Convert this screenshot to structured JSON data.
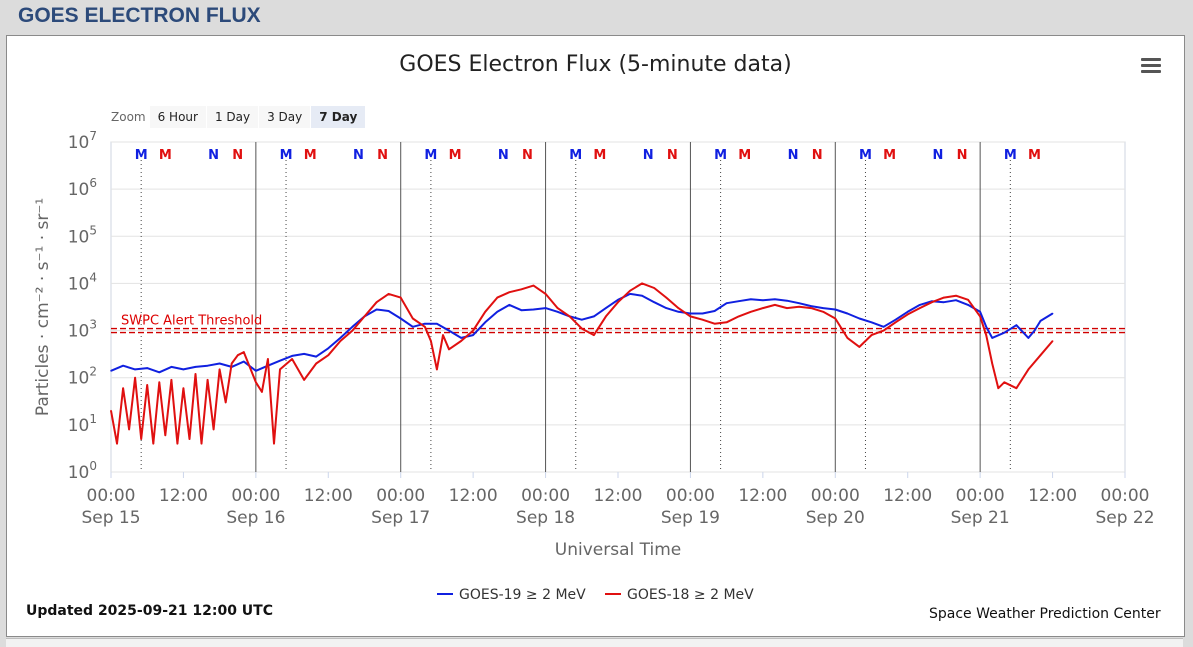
{
  "page": {
    "header_title": "GOES ELECTRON FLUX"
  },
  "chart_ui": {
    "zoom_label": "Zoom",
    "zoom_buttons": [
      "6 Hour",
      "1 Day",
      "3 Day",
      "7 Day"
    ],
    "zoom_selected": "7 Day",
    "menu_icon": "hamburger-menu-icon"
  },
  "footer": {
    "updated": "Updated 2025-09-21 12:00 UTC",
    "credit": "Space Weather Prediction Center"
  },
  "colors": {
    "goes19": "#1020e0",
    "goes18": "#e01010",
    "threshold": "#d00000",
    "header_text": "#2c4a7a"
  },
  "chart_data": {
    "type": "line",
    "title": "GOES Electron Flux (5-minute data)",
    "xlabel": "Universal Time",
    "ylabel": "Particles · cm⁻² · s⁻¹ · sr⁻¹",
    "y_scale": "log",
    "ylim": [
      1,
      10000000
    ],
    "y_ticks": [
      {
        "base": "10",
        "exp": "0",
        "value": 1
      },
      {
        "base": "10",
        "exp": "1",
        "value": 10
      },
      {
        "base": "10",
        "exp": "2",
        "value": 100
      },
      {
        "base": "10",
        "exp": "3",
        "value": 1000
      },
      {
        "base": "10",
        "exp": "4",
        "value": 10000
      },
      {
        "base": "10",
        "exp": "5",
        "value": 100000
      },
      {
        "base": "10",
        "exp": "6",
        "value": 1000000
      },
      {
        "base": "10",
        "exp": "7",
        "value": 10000000
      }
    ],
    "x_range": [
      "2025-09-15 00:00",
      "2025-09-22 00:00"
    ],
    "x_ticks": [
      {
        "time": "00:00",
        "date": "Sep 15",
        "x": "2025-09-15 00:00"
      },
      {
        "time": "12:00",
        "date": "",
        "x": "2025-09-15 12:00"
      },
      {
        "time": "00:00",
        "date": "Sep 16",
        "x": "2025-09-16 00:00"
      },
      {
        "time": "12:00",
        "date": "",
        "x": "2025-09-16 12:00"
      },
      {
        "time": "00:00",
        "date": "Sep 17",
        "x": "2025-09-17 00:00"
      },
      {
        "time": "12:00",
        "date": "",
        "x": "2025-09-17 12:00"
      },
      {
        "time": "00:00",
        "date": "Sep 18",
        "x": "2025-09-18 00:00"
      },
      {
        "time": "12:00",
        "date": "",
        "x": "2025-09-18 12:00"
      },
      {
        "time": "00:00",
        "date": "Sep 19",
        "x": "2025-09-19 00:00"
      },
      {
        "time": "12:00",
        "date": "",
        "x": "2025-09-19 12:00"
      },
      {
        "time": "00:00",
        "date": "Sep 20",
        "x": "2025-09-20 00:00"
      },
      {
        "time": "12:00",
        "date": "",
        "x": "2025-09-20 12:00"
      },
      {
        "time": "00:00",
        "date": "Sep 21",
        "x": "2025-09-21 00:00"
      },
      {
        "time": "12:00",
        "date": "",
        "x": "2025-09-21 12:00"
      },
      {
        "time": "00:00",
        "date": "Sep 22",
        "x": "2025-09-22 00:00"
      }
    ],
    "grid": true,
    "legend_position": "bottom-center",
    "threshold": {
      "label": "SWPC Alert Threshold",
      "value": 1000
    },
    "markers": [
      {
        "label": "M",
        "series": "goes19",
        "x": "2025-09-15 05:00"
      },
      {
        "label": "M",
        "series": "goes18",
        "x": "2025-09-15 09:00"
      },
      {
        "label": "N",
        "series": "goes19",
        "x": "2025-09-15 17:00"
      },
      {
        "label": "N",
        "series": "goes18",
        "x": "2025-09-15 21:00"
      },
      {
        "label": "M",
        "series": "goes19",
        "x": "2025-09-16 05:00"
      },
      {
        "label": "M",
        "series": "goes18",
        "x": "2025-09-16 09:00"
      },
      {
        "label": "N",
        "series": "goes19",
        "x": "2025-09-16 17:00"
      },
      {
        "label": "N",
        "series": "goes18",
        "x": "2025-09-16 21:00"
      },
      {
        "label": "M",
        "series": "goes19",
        "x": "2025-09-17 05:00"
      },
      {
        "label": "M",
        "series": "goes18",
        "x": "2025-09-17 09:00"
      },
      {
        "label": "N",
        "series": "goes19",
        "x": "2025-09-17 17:00"
      },
      {
        "label": "N",
        "series": "goes18",
        "x": "2025-09-17 21:00"
      },
      {
        "label": "M",
        "series": "goes19",
        "x": "2025-09-18 05:00"
      },
      {
        "label": "M",
        "series": "goes18",
        "x": "2025-09-18 09:00"
      },
      {
        "label": "N",
        "series": "goes19",
        "x": "2025-09-18 17:00"
      },
      {
        "label": "N",
        "series": "goes18",
        "x": "2025-09-18 21:00"
      },
      {
        "label": "M",
        "series": "goes19",
        "x": "2025-09-19 05:00"
      },
      {
        "label": "M",
        "series": "goes18",
        "x": "2025-09-19 09:00"
      },
      {
        "label": "N",
        "series": "goes19",
        "x": "2025-09-19 17:00"
      },
      {
        "label": "N",
        "series": "goes18",
        "x": "2025-09-19 21:00"
      },
      {
        "label": "M",
        "series": "goes19",
        "x": "2025-09-20 05:00"
      },
      {
        "label": "M",
        "series": "goes18",
        "x": "2025-09-20 09:00"
      },
      {
        "label": "N",
        "series": "goes19",
        "x": "2025-09-20 17:00"
      },
      {
        "label": "N",
        "series": "goes18",
        "x": "2025-09-20 21:00"
      },
      {
        "label": "M",
        "series": "goes19",
        "x": "2025-09-21 05:00"
      },
      {
        "label": "M",
        "series": "goes18",
        "x": "2025-09-21 09:00"
      }
    ],
    "series": [
      {
        "id": "goes19",
        "name": "GOES-19 ≥ 2 MeV",
        "color": "#1020e0",
        "points": [
          [
            "2025-09-15 00:00",
            140
          ],
          [
            "2025-09-15 02:00",
            180
          ],
          [
            "2025-09-15 04:00",
            150
          ],
          [
            "2025-09-15 06:00",
            160
          ],
          [
            "2025-09-15 08:00",
            130
          ],
          [
            "2025-09-15 10:00",
            170
          ],
          [
            "2025-09-15 12:00",
            150
          ],
          [
            "2025-09-15 14:00",
            170
          ],
          [
            "2025-09-15 16:00",
            180
          ],
          [
            "2025-09-15 18:00",
            200
          ],
          [
            "2025-09-15 20:00",
            170
          ],
          [
            "2025-09-15 22:00",
            220
          ],
          [
            "2025-09-16 00:00",
            140
          ],
          [
            "2025-09-16 02:00",
            180
          ],
          [
            "2025-09-16 04:00",
            230
          ],
          [
            "2025-09-16 06:00",
            290
          ],
          [
            "2025-09-16 08:00",
            320
          ],
          [
            "2025-09-16 10:00",
            280
          ],
          [
            "2025-09-16 12:00",
            420
          ],
          [
            "2025-09-16 14:00",
            700
          ],
          [
            "2025-09-16 16:00",
            1200
          ],
          [
            "2025-09-16 18:00",
            2000
          ],
          [
            "2025-09-16 20:00",
            2800
          ],
          [
            "2025-09-16 22:00",
            2600
          ],
          [
            "2025-09-17 00:00",
            1800
          ],
          [
            "2025-09-17 02:00",
            1200
          ],
          [
            "2025-09-17 04:00",
            1400
          ],
          [
            "2025-09-17 06:00",
            1400
          ],
          [
            "2025-09-17 08:00",
            1000
          ],
          [
            "2025-09-17 10:00",
            700
          ],
          [
            "2025-09-17 12:00",
            800
          ],
          [
            "2025-09-17 14:00",
            1500
          ],
          [
            "2025-09-17 16:00",
            2500
          ],
          [
            "2025-09-17 18:00",
            3500
          ],
          [
            "2025-09-17 20:00",
            2700
          ],
          [
            "2025-09-17 22:00",
            2800
          ],
          [
            "2025-09-18 00:00",
            3000
          ],
          [
            "2025-09-18 02:00",
            2500
          ],
          [
            "2025-09-18 04:00",
            2000
          ],
          [
            "2025-09-18 06:00",
            1700
          ],
          [
            "2025-09-18 08:00",
            2000
          ],
          [
            "2025-09-18 10:00",
            3000
          ],
          [
            "2025-09-18 12:00",
            4500
          ],
          [
            "2025-09-18 14:00",
            6000
          ],
          [
            "2025-09-18 16:00",
            5500
          ],
          [
            "2025-09-18 18:00",
            4000
          ],
          [
            "2025-09-18 20:00",
            3000
          ],
          [
            "2025-09-18 22:00",
            2500
          ],
          [
            "2025-09-19 00:00",
            2300
          ],
          [
            "2025-09-19 02:00",
            2300
          ],
          [
            "2025-09-19 04:00",
            2600
          ],
          [
            "2025-09-19 06:00",
            3800
          ],
          [
            "2025-09-19 08:00",
            4200
          ],
          [
            "2025-09-19 10:00",
            4600
          ],
          [
            "2025-09-19 12:00",
            4400
          ],
          [
            "2025-09-19 14:00",
            4600
          ],
          [
            "2025-09-19 16:00",
            4300
          ],
          [
            "2025-09-19 18:00",
            3800
          ],
          [
            "2025-09-19 20:00",
            3300
          ],
          [
            "2025-09-19 22:00",
            3000
          ],
          [
            "2025-09-20 00:00",
            2800
          ],
          [
            "2025-09-20 02:00",
            2300
          ],
          [
            "2025-09-20 04:00",
            1800
          ],
          [
            "2025-09-20 06:00",
            1500
          ],
          [
            "2025-09-20 08:00",
            1200
          ],
          [
            "2025-09-20 10:00",
            1700
          ],
          [
            "2025-09-20 12:00",
            2500
          ],
          [
            "2025-09-20 14:00",
            3500
          ],
          [
            "2025-09-20 16:00",
            4200
          ],
          [
            "2025-09-20 18:00",
            4000
          ],
          [
            "2025-09-20 20:00",
            4400
          ],
          [
            "2025-09-20 22:00",
            3500
          ],
          [
            "2025-09-21 00:00",
            2500
          ],
          [
            "2025-09-21 01:00",
            1200
          ],
          [
            "2025-09-21 02:00",
            700
          ],
          [
            "2025-09-21 04:00",
            900
          ],
          [
            "2025-09-21 06:00",
            1300
          ],
          [
            "2025-09-21 08:00",
            700
          ],
          [
            "2025-09-21 09:00",
            1000
          ],
          [
            "2025-09-21 10:00",
            1600
          ],
          [
            "2025-09-21 12:00",
            2300
          ]
        ]
      },
      {
        "id": "goes18",
        "name": "GOES-18 ≥ 2 MeV",
        "color": "#e01010",
        "points": [
          [
            "2025-09-15 00:00",
            20
          ],
          [
            "2025-09-15 01:00",
            4
          ],
          [
            "2025-09-15 02:00",
            60
          ],
          [
            "2025-09-15 03:00",
            8
          ],
          [
            "2025-09-15 04:00",
            100
          ],
          [
            "2025-09-15 05:00",
            5
          ],
          [
            "2025-09-15 06:00",
            70
          ],
          [
            "2025-09-15 07:00",
            4
          ],
          [
            "2025-09-15 08:00",
            80
          ],
          [
            "2025-09-15 09:00",
            6
          ],
          [
            "2025-09-15 10:00",
            90
          ],
          [
            "2025-09-15 11:00",
            4
          ],
          [
            "2025-09-15 12:00",
            60
          ],
          [
            "2025-09-15 13:00",
            5
          ],
          [
            "2025-09-15 14:00",
            120
          ],
          [
            "2025-09-15 15:00",
            4
          ],
          [
            "2025-09-15 16:00",
            90
          ],
          [
            "2025-09-15 17:00",
            8
          ],
          [
            "2025-09-15 18:00",
            150
          ],
          [
            "2025-09-15 19:00",
            30
          ],
          [
            "2025-09-15 20:00",
            200
          ],
          [
            "2025-09-15 21:00",
            300
          ],
          [
            "2025-09-15 22:00",
            350
          ],
          [
            "2025-09-16 00:00",
            80
          ],
          [
            "2025-09-16 01:00",
            50
          ],
          [
            "2025-09-16 02:00",
            250
          ],
          [
            "2025-09-16 03:00",
            4
          ],
          [
            "2025-09-16 04:00",
            150
          ],
          [
            "2025-09-16 06:00",
            250
          ],
          [
            "2025-09-16 08:00",
            90
          ],
          [
            "2025-09-16 10:00",
            200
          ],
          [
            "2025-09-16 12:00",
            300
          ],
          [
            "2025-09-16 14:00",
            600
          ],
          [
            "2025-09-16 16:00",
            1000
          ],
          [
            "2025-09-16 18:00",
            2000
          ],
          [
            "2025-09-16 20:00",
            4000
          ],
          [
            "2025-09-16 22:00",
            6000
          ],
          [
            "2025-09-17 00:00",
            5000
          ],
          [
            "2025-09-17 02:00",
            1800
          ],
          [
            "2025-09-17 04:00",
            1200
          ],
          [
            "2025-09-17 05:00",
            600
          ],
          [
            "2025-09-17 06:00",
            150
          ],
          [
            "2025-09-17 07:00",
            800
          ],
          [
            "2025-09-17 08:00",
            400
          ],
          [
            "2025-09-17 10:00",
            600
          ],
          [
            "2025-09-17 12:00",
            1000
          ],
          [
            "2025-09-17 14:00",
            2500
          ],
          [
            "2025-09-17 16:00",
            5000
          ],
          [
            "2025-09-17 18:00",
            6500
          ],
          [
            "2025-09-17 20:00",
            7500
          ],
          [
            "2025-09-17 22:00",
            9000
          ],
          [
            "2025-09-18 00:00",
            6000
          ],
          [
            "2025-09-18 02:00",
            3000
          ],
          [
            "2025-09-18 04:00",
            2000
          ],
          [
            "2025-09-18 06:00",
            1100
          ],
          [
            "2025-09-18 08:00",
            800
          ],
          [
            "2025-09-18 10:00",
            2000
          ],
          [
            "2025-09-18 12:00",
            4000
          ],
          [
            "2025-09-18 14:00",
            7000
          ],
          [
            "2025-09-18 16:00",
            10000
          ],
          [
            "2025-09-18 18:00",
            8000
          ],
          [
            "2025-09-18 20:00",
            5000
          ],
          [
            "2025-09-18 22:00",
            3000
          ],
          [
            "2025-09-19 00:00",
            2000
          ],
          [
            "2025-09-19 02:00",
            1700
          ],
          [
            "2025-09-19 04:00",
            1400
          ],
          [
            "2025-09-19 06:00",
            1500
          ],
          [
            "2025-09-19 08:00",
            2000
          ],
          [
            "2025-09-19 10:00",
            2500
          ],
          [
            "2025-09-19 12:00",
            3000
          ],
          [
            "2025-09-19 14:00",
            3500
          ],
          [
            "2025-09-19 16:00",
            3000
          ],
          [
            "2025-09-19 18:00",
            3200
          ],
          [
            "2025-09-19 20:00",
            3000
          ],
          [
            "2025-09-19 22:00",
            2500
          ],
          [
            "2025-09-20 00:00",
            1800
          ],
          [
            "2025-09-20 02:00",
            700
          ],
          [
            "2025-09-20 04:00",
            450
          ],
          [
            "2025-09-20 06:00",
            800
          ],
          [
            "2025-09-20 08:00",
            1000
          ],
          [
            "2025-09-20 10:00",
            1500
          ],
          [
            "2025-09-20 12:00",
            2200
          ],
          [
            "2025-09-20 14:00",
            3000
          ],
          [
            "2025-09-20 16:00",
            4000
          ],
          [
            "2025-09-20 18:00",
            5000
          ],
          [
            "2025-09-20 20:00",
            5500
          ],
          [
            "2025-09-20 22:00",
            4500
          ],
          [
            "2025-09-21 00:00",
            2000
          ],
          [
            "2025-09-21 01:00",
            800
          ],
          [
            "2025-09-21 02:00",
            200
          ],
          [
            "2025-09-21 03:00",
            60
          ],
          [
            "2025-09-21 04:00",
            80
          ],
          [
            "2025-09-21 06:00",
            60
          ],
          [
            "2025-09-21 08:00",
            150
          ],
          [
            "2025-09-21 10:00",
            300
          ],
          [
            "2025-09-21 12:00",
            600
          ]
        ]
      }
    ]
  }
}
